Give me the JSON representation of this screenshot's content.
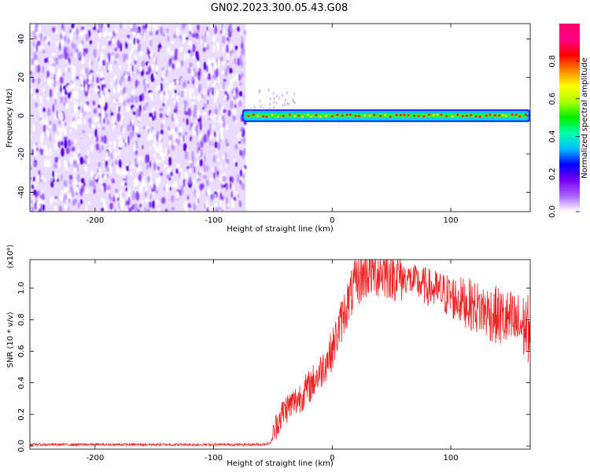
{
  "title": "GN02.2023.300.05.43.G08",
  "colors": {
    "snr_line": "#ee2222",
    "noise": "#7a22ee",
    "colorbar_stops": [
      "#ffffff",
      "#aa66ff",
      "#7700ee",
      "#0000ff",
      "#00bbff",
      "#00ffaa",
      "#00ee00",
      "#aaff00",
      "#ffff00",
      "#ff8800",
      "#ff0000",
      "#ff0088",
      "#ff0066"
    ]
  },
  "chart_data": [
    {
      "type": "heatmap",
      "xlabel": "Height of straight line (km)",
      "ylabel": "Frequency (Hz)",
      "xlim": [
        -255,
        167
      ],
      "ylim": [
        -50,
        48
      ],
      "x_ticks": [
        -200,
        -100,
        0,
        100
      ],
      "x_tick_labels": [
        "-200",
        "-100",
        "0",
        "100"
      ],
      "y_ticks": [
        -40,
        -20,
        0,
        20,
        40
      ],
      "y_tick_labels": [
        "-40",
        "-20",
        "0",
        "20",
        "40"
      ],
      "noise_region": {
        "x_range": [
          -255,
          -73
        ],
        "freq_range": [
          -50,
          48
        ]
      },
      "signal_ridge": {
        "x_range": [
          -76,
          167
        ],
        "freq_hz": 0,
        "half_width_hz": 2.5
      },
      "colorbar": {
        "label": "Normalized spectral amplitude",
        "range": [
          0.0,
          1.0
        ],
        "ticks": [
          0.0,
          0.2,
          0.4,
          0.6,
          0.8
        ],
        "tick_labels": [
          "0.0",
          "0.2",
          "0.4",
          "0.6",
          "0.8"
        ]
      }
    },
    {
      "type": "line",
      "xlabel": "Height of straight line (km)",
      "ylabel": "SNR (10 * v/v)",
      "y_scale_label": "(x10⁴)",
      "xlim": [
        -255,
        167
      ],
      "ylim": [
        -0.02,
        1.18
      ],
      "x_ticks": [
        -200,
        -100,
        0,
        100
      ],
      "x_tick_labels": [
        "-200",
        "-100",
        "0",
        "100"
      ],
      "y_ticks": [
        0.0,
        0.2,
        0.4,
        0.6,
        0.8,
        1.0
      ],
      "y_tick_labels": [
        "0.0",
        "0.2",
        "0.4",
        "0.6",
        "0.8",
        "1.0"
      ],
      "series": [
        {
          "x": [
            -255,
            -200,
            -150,
            -100,
            -60,
            -52,
            -48,
            -45,
            -40,
            -30,
            -20,
            -10,
            0,
            10,
            20,
            30,
            40,
            50,
            60,
            80,
            100,
            120,
            140,
            160,
            167
          ],
          "y": [
            0.01,
            0.01,
            0.01,
            0.01,
            0.01,
            0.02,
            0.12,
            0.18,
            0.24,
            0.3,
            0.38,
            0.48,
            0.62,
            0.86,
            1.05,
            1.12,
            1.12,
            1.11,
            1.08,
            1.02,
            0.96,
            0.9,
            0.84,
            0.78,
            0.76
          ]
        }
      ]
    }
  ]
}
